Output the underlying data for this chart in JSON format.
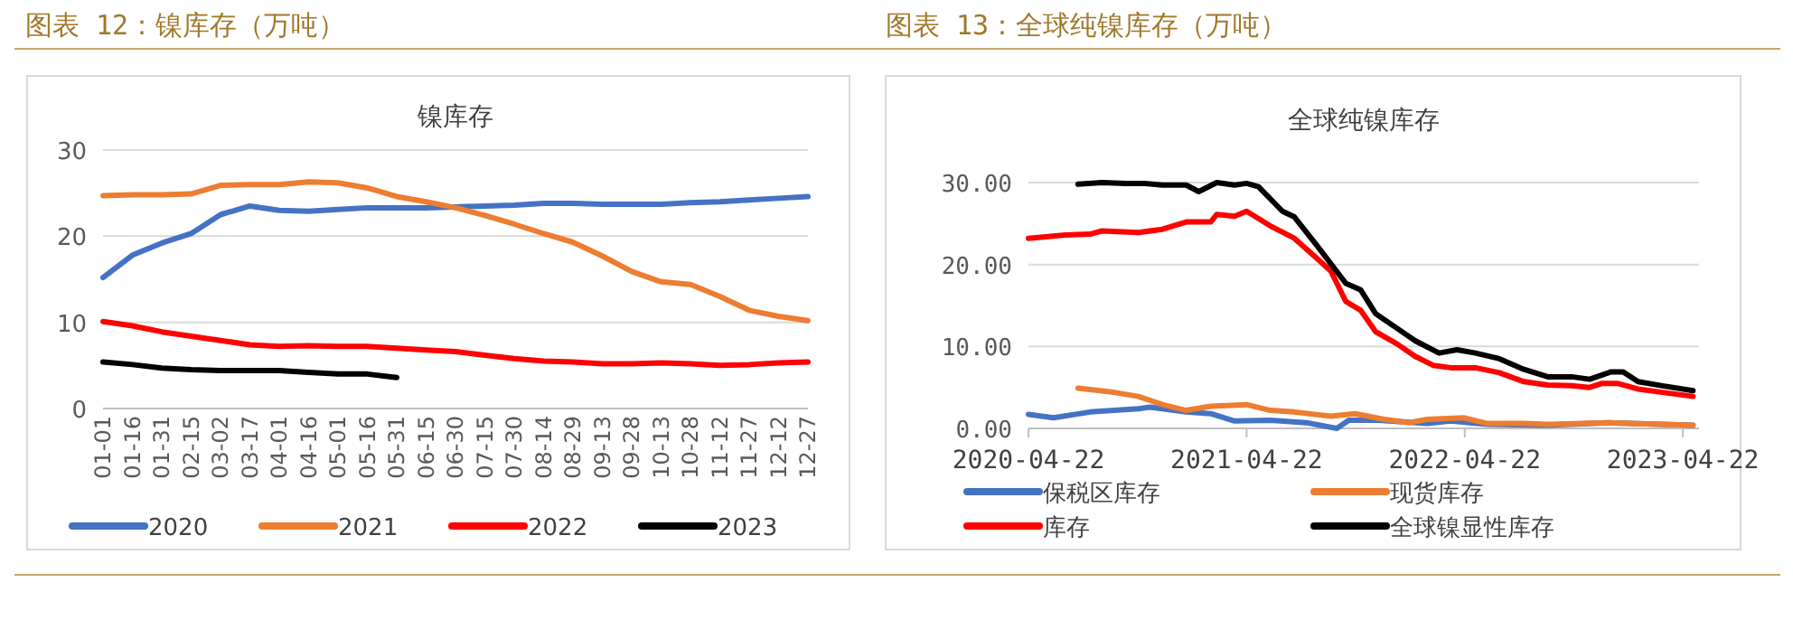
{
  "chart_data": [
    {
      "type": "line",
      "title": "图表 12：镍库存（万吨）",
      "subtitle": "镍库存",
      "categories": [
        "01-01",
        "01-16",
        "01-31",
        "02-15",
        "03-02",
        "03-17",
        "04-01",
        "04-16",
        "05-01",
        "05-16",
        "05-31",
        "06-15",
        "06-30",
        "07-15",
        "07-30",
        "08-14",
        "08-29",
        "09-13",
        "09-28",
        "10-13",
        "10-28",
        "11-12",
        "11-27",
        "12-12",
        "12-27"
      ],
      "series": [
        {
          "name": "2020",
          "color": "#4472c4",
          "values": [
            15.2,
            17.8,
            19.2,
            20.3,
            22.5,
            23.5,
            23.0,
            22.9,
            23.1,
            23.3,
            23.3,
            23.3,
            23.4,
            23.5,
            23.6,
            23.8,
            23.8,
            23.7,
            23.7,
            23.7,
            23.9,
            24.0,
            24.2,
            24.4,
            24.6
          ]
        },
        {
          "name": "2021",
          "color": "#ed7d31",
          "values": [
            24.7,
            24.8,
            24.8,
            24.9,
            25.9,
            26.0,
            26.0,
            26.3,
            26.2,
            25.6,
            24.6,
            24.0,
            23.3,
            22.4,
            21.4,
            20.3,
            19.3,
            17.7,
            15.9,
            14.7,
            14.4,
            13.0,
            11.4,
            10.7,
            10.2
          ]
        },
        {
          "name": "2022",
          "color": "#ff0000",
          "values": [
            10.1,
            9.6,
            8.9,
            8.4,
            7.9,
            7.4,
            7.2,
            7.3,
            7.2,
            7.2,
            7.0,
            6.8,
            6.6,
            6.2,
            5.8,
            5.5,
            5.4,
            5.2,
            5.2,
            5.3,
            5.2,
            5.0,
            5.1,
            5.3,
            5.4
          ]
        },
        {
          "name": "2023",
          "color": "#000000",
          "values": [
            5.4,
            5.1,
            4.7,
            4.5,
            4.4,
            4.4,
            4.4,
            4.2,
            4.0,
            4.0,
            3.6,
            null,
            null,
            null,
            null,
            null,
            null,
            null,
            null,
            null,
            null,
            null,
            null,
            null,
            null
          ]
        }
      ],
      "ylim": [
        0,
        30
      ],
      "yticks": [
        0,
        10,
        20,
        30
      ],
      "grid": "y",
      "legend": "bottom"
    },
    {
      "type": "line",
      "title": "图表 13：全球纯镍库存（万吨）",
      "subtitle": "全球纯镍库存",
      "xlim": [
        "2020-04-22",
        "2023-05-19"
      ],
      "xticks": [
        "2020-04-22",
        "2021-04-22",
        "2022-04-22",
        "2023-04-22"
      ],
      "ylim": [
        0,
        30
      ],
      "yticks": [
        {
          "value": 0,
          "label": "0.00"
        },
        {
          "value": 10,
          "label": "10.00"
        },
        {
          "value": 20,
          "label": "20.00"
        },
        {
          "value": 30,
          "label": "30.00"
        }
      ],
      "grid": "y",
      "legend": "bottom",
      "series": [
        {
          "name": "保税区库存",
          "color": "#4472c4",
          "x": [
            "2020-04-22",
            "2020-06-03",
            "2020-08-03",
            "2020-10-23",
            "2020-11-12",
            "2021-01-11",
            "2021-02-21",
            "2021-04-02",
            "2021-06-01",
            "2021-07-31",
            "2021-09-20",
            "2021-10-10",
            "2021-11-29",
            "2022-02-18",
            "2022-03-30",
            "2022-05-30",
            "2022-09-08",
            "2022-12-18",
            "2023-05-09"
          ],
          "values": [
            1.7,
            1.3,
            2.0,
            2.4,
            2.6,
            2.0,
            1.8,
            0.9,
            1.0,
            0.7,
            0.0,
            1.0,
            1.0,
            0.6,
            0.9,
            0.5,
            0.4,
            0.7,
            0.4
          ]
        },
        {
          "name": "现货库存",
          "color": "#ed7d31",
          "x": [
            "2020-07-14",
            "2020-09-12",
            "2020-10-23",
            "2020-12-02",
            "2021-01-11",
            "2021-02-21",
            "2021-04-22",
            "2021-06-01",
            "2021-07-11",
            "2021-09-10",
            "2021-10-20",
            "2021-12-09",
            "2022-01-19",
            "2022-02-18",
            "2022-04-20",
            "2022-05-30",
            "2022-07-30",
            "2022-09-08",
            "2022-12-18",
            "2023-05-09"
          ],
          "values": [
            4.9,
            4.4,
            3.9,
            2.9,
            2.2,
            2.7,
            2.9,
            2.2,
            2.0,
            1.5,
            1.8,
            1.1,
            0.7,
            1.1,
            1.3,
            0.6,
            0.6,
            0.5,
            0.7,
            0.4
          ]
        },
        {
          "name": "库存",
          "color": "#ff0000",
          "x": [
            "2020-04-22",
            "2020-06-23",
            "2020-08-03",
            "2020-08-23",
            "2020-10-23",
            "2020-12-02",
            "2021-01-11",
            "2021-02-21",
            "2021-03-03",
            "2021-04-02",
            "2021-04-22",
            "2021-06-01",
            "2021-07-11",
            "2021-08-20",
            "2021-09-10",
            "2021-10-05",
            "2021-10-30",
            "2021-11-24",
            "2021-12-30",
            "2022-01-29",
            "2022-02-28",
            "2022-03-30",
            "2022-05-10",
            "2022-06-19",
            "2022-07-30",
            "2022-09-08",
            "2022-10-18",
            "2022-11-17",
            "2022-12-08",
            "2023-01-02",
            "2023-02-06",
            "2023-03-19",
            "2023-05-09"
          ],
          "values": [
            23.2,
            23.6,
            23.7,
            24.1,
            23.9,
            24.3,
            25.2,
            25.2,
            26.1,
            25.9,
            26.5,
            24.7,
            23.2,
            20.6,
            19.2,
            15.5,
            14.4,
            11.8,
            10.3,
            8.8,
            7.7,
            7.4,
            7.4,
            6.8,
            5.7,
            5.3,
            5.2,
            5.0,
            5.5,
            5.5,
            4.8,
            4.4,
            3.9
          ]
        },
        {
          "name": "全球镍显性库存",
          "color": "#000000",
          "x": [
            "2020-07-14",
            "2020-08-23",
            "2020-10-02",
            "2020-11-02",
            "2020-12-02",
            "2021-01-11",
            "2021-02-01",
            "2021-03-03",
            "2021-04-02",
            "2021-04-22",
            "2021-05-12",
            "2021-06-21",
            "2021-07-11",
            "2021-08-20",
            "2021-10-05",
            "2021-10-30",
            "2021-11-24",
            "2021-12-30",
            "2022-01-29",
            "2022-03-10",
            "2022-04-09",
            "2022-05-10",
            "2022-06-19",
            "2022-07-30",
            "2022-09-08",
            "2022-10-18",
            "2022-11-17",
            "2022-12-23",
            "2023-01-12",
            "2023-02-06",
            "2023-03-19",
            "2023-05-09"
          ],
          "values": [
            29.8,
            30.0,
            29.9,
            29.9,
            29.7,
            29.7,
            28.9,
            30.0,
            29.7,
            29.9,
            29.5,
            26.5,
            25.8,
            22.1,
            17.7,
            16.9,
            14.0,
            12.2,
            10.7,
            9.2,
            9.6,
            9.2,
            8.5,
            7.2,
            6.3,
            6.3,
            6.0,
            6.9,
            6.9,
            5.7,
            5.2,
            4.6
          ]
        }
      ]
    }
  ]
}
